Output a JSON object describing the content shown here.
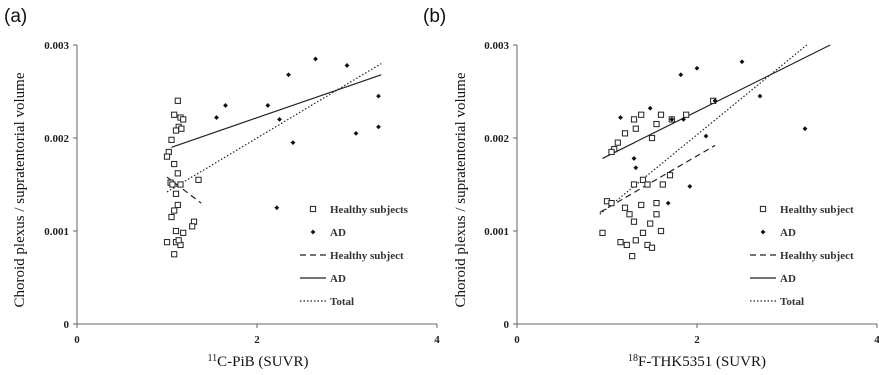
{
  "chart_data": [
    {
      "type": "scatter",
      "panel_label": "(a)",
      "xlabel_prefix": "11",
      "xlabel_rest": "C-PiB (SUVR)",
      "ylabel": "Choroid plexus / supratentorial volume",
      "xlim": [
        0,
        4
      ],
      "ylim": [
        0,
        0.003
      ],
      "xticks": [
        "0",
        "2",
        "4"
      ],
      "yticks": [
        "0",
        "0.001",
        "0.002",
        "0.003"
      ],
      "grid": false,
      "legend_position": "lower-right",
      "legend": [
        "Healthy subjects",
        "AD",
        "Healthy subject",
        "AD",
        "Total"
      ],
      "series": [
        {
          "name": "Healthy subjects",
          "marker": "open-square",
          "points": [
            [
              1.12,
              0.0024
            ],
            [
              1.08,
              0.00225
            ],
            [
              1.15,
              0.00222
            ],
            [
              1.13,
              0.00212
            ],
            [
              1.1,
              0.00208
            ],
            [
              1.18,
              0.0022
            ],
            [
              1.16,
              0.0021
            ],
            [
              1.05,
              0.00198
            ],
            [
              1.02,
              0.00185
            ],
            [
              1.0,
              0.0018
            ],
            [
              1.08,
              0.00172
            ],
            [
              1.12,
              0.00162
            ],
            [
              1.04,
              0.00152
            ],
            [
              1.15,
              0.0015
            ],
            [
              1.35,
              0.00155
            ],
            [
              1.06,
              0.0015
            ],
            [
              1.1,
              0.0014
            ],
            [
              1.12,
              0.00128
            ],
            [
              1.08,
              0.00122
            ],
            [
              1.05,
              0.00115
            ],
            [
              1.1,
              0.001
            ],
            [
              1.3,
              0.0011
            ],
            [
              1.28,
              0.00105
            ],
            [
              1.0,
              0.00088
            ],
            [
              1.1,
              0.00088
            ],
            [
              1.15,
              0.00085
            ],
            [
              1.08,
              0.00075
            ],
            [
              1.13,
              0.0009
            ],
            [
              1.18,
              0.00098
            ]
          ]
        },
        {
          "name": "AD",
          "marker": "filled-diamond",
          "points": [
            [
              1.55,
              0.00222
            ],
            [
              1.65,
              0.00235
            ],
            [
              2.12,
              0.00235
            ],
            [
              2.35,
              0.00268
            ],
            [
              2.65,
              0.00285
            ],
            [
              3.0,
              0.00278
            ],
            [
              3.35,
              0.00245
            ],
            [
              3.1,
              0.00205
            ],
            [
              3.35,
              0.00212
            ],
            [
              2.25,
              0.0022
            ],
            [
              2.4,
              0.00195
            ],
            [
              2.22,
              0.00125
            ]
          ]
        }
      ],
      "fit_lines": [
        {
          "name": "Healthy subject",
          "style": "dashed",
          "x": [
            1.0,
            1.38
          ],
          "y": [
            0.00158,
            0.0013
          ]
        },
        {
          "name": "AD",
          "style": "solid",
          "x": [
            1.05,
            3.38
          ],
          "y": [
            0.0019,
            0.00268
          ]
        },
        {
          "name": "Total",
          "style": "dotted",
          "x": [
            1.0,
            3.38
          ],
          "y": [
            0.00142,
            0.0028
          ]
        }
      ]
    },
    {
      "type": "scatter",
      "panel_label": "(b)",
      "xlabel_prefix": "18",
      "xlabel_rest": "F-THK5351 (SUVR)",
      "ylabel": "Choroid plexus / supratentorial volume",
      "xlim": [
        0,
        4
      ],
      "ylim": [
        0,
        0.003
      ],
      "xticks": [
        "0",
        "2",
        "4"
      ],
      "yticks": [
        "0",
        "0.001",
        "0.002",
        "0.003"
      ],
      "grid": false,
      "legend_position": "lower-right",
      "legend": [
        "Healthy subject",
        "AD",
        "Healthy subject",
        "AD",
        "Total"
      ],
      "series": [
        {
          "name": "Healthy subject",
          "marker": "open-square",
          "points": [
            [
              1.08,
              0.00188
            ],
            [
              1.05,
              0.00185
            ],
            [
              1.12,
              0.00195
            ],
            [
              1.2,
              0.00205
            ],
            [
              1.3,
              0.0022
            ],
            [
              1.32,
              0.0021
            ],
            [
              1.38,
              0.00225
            ],
            [
              1.5,
              0.002
            ],
            [
              1.6,
              0.00225
            ],
            [
              1.55,
              0.00215
            ],
            [
              1.72,
              0.0022
            ],
            [
              1.88,
              0.00225
            ],
            [
              2.18,
              0.0024
            ],
            [
              1.0,
              0.00132
            ],
            [
              1.05,
              0.0013
            ],
            [
              1.2,
              0.00125
            ],
            [
              1.25,
              0.00118
            ],
            [
              1.3,
              0.0015
            ],
            [
              1.4,
              0.00155
            ],
            [
              1.45,
              0.0015
            ],
            [
              1.55,
              0.0013
            ],
            [
              1.62,
              0.0015
            ],
            [
              1.7,
              0.0016
            ],
            [
              1.3,
              0.0011
            ],
            [
              1.4,
              0.00098
            ],
            [
              1.48,
              0.00108
            ],
            [
              1.55,
              0.00118
            ],
            [
              0.95,
              0.00098
            ],
            [
              1.15,
              0.00088
            ],
            [
              1.22,
              0.00085
            ],
            [
              1.32,
              0.0009
            ],
            [
              1.45,
              0.00085
            ],
            [
              1.5,
              0.00082
            ],
            [
              1.28,
              0.00073
            ],
            [
              1.6,
              0.001
            ],
            [
              1.38,
              0.00128
            ]
          ]
        },
        {
          "name": "AD",
          "marker": "filled-diamond",
          "points": [
            [
              1.15,
              0.00222
            ],
            [
              1.3,
              0.00178
            ],
            [
              1.32,
              0.00168
            ],
            [
              1.48,
              0.00232
            ],
            [
              1.72,
              0.0022
            ],
            [
              1.82,
              0.00268
            ],
            [
              2.0,
              0.00275
            ],
            [
              2.2,
              0.0024
            ],
            [
              2.5,
              0.00282
            ],
            [
              2.7,
              0.00245
            ],
            [
              3.2,
              0.0021
            ],
            [
              2.1,
              0.00202
            ],
            [
              1.92,
              0.00148
            ],
            [
              1.68,
              0.0013
            ],
            [
              1.85,
              0.0022
            ]
          ]
        }
      ],
      "fit_lines": [
        {
          "name": "Healthy subject",
          "style": "dashed",
          "x": [
            0.92,
            2.2
          ],
          "y": [
            0.0012,
            0.00192
          ]
        },
        {
          "name": "AD",
          "style": "solid",
          "x": [
            0.95,
            3.48
          ],
          "y": [
            0.00178,
            0.003
          ]
        },
        {
          "name": "Total",
          "style": "dotted",
          "x": [
            0.92,
            3.22
          ],
          "y": [
            0.00118,
            0.003
          ]
        }
      ]
    }
  ]
}
